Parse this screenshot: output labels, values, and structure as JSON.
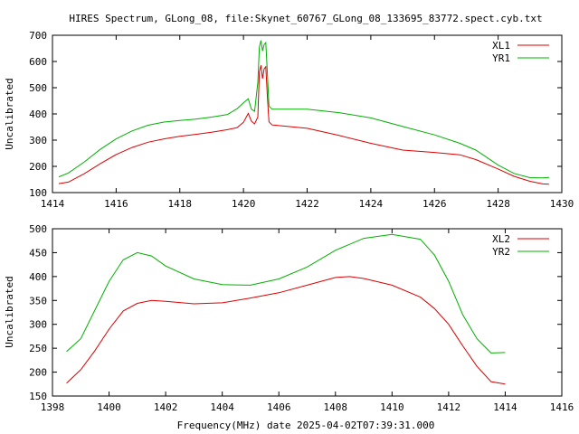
{
  "title": "HIRES Spectrum, GLong_08, file:Skynet_60767_GLong_08_133695_83772.spect.cyb.txt",
  "xlabel": "Frequency(MHz) date 2025-04-02T07:39:31.000",
  "colors": {
    "red": "#dd0000",
    "green": "#00b000",
    "axis": "#000000"
  },
  "chart_data": [
    {
      "type": "line",
      "ylabel": "Uncalibrated",
      "xlim": [
        1414,
        1430
      ],
      "ylim": [
        100,
        700
      ],
      "xticks": [
        1414,
        1416,
        1418,
        1420,
        1422,
        1424,
        1426,
        1428,
        1430
      ],
      "yticks": [
        100,
        200,
        300,
        400,
        500,
        600,
        700
      ],
      "legend_position": "top-right",
      "series": [
        {
          "name": "XL1",
          "color": "#dd0000",
          "points": [
            [
              1414.2,
              134
            ],
            [
              1414.5,
              140
            ],
            [
              1415,
              172
            ],
            [
              1415.5,
              210
            ],
            [
              1416,
              245
            ],
            [
              1416.5,
              272
            ],
            [
              1417,
              292
            ],
            [
              1417.5,
              305
            ],
            [
              1418,
              315
            ],
            [
              1418.5,
              322
            ],
            [
              1419,
              330
            ],
            [
              1419.5,
              340
            ],
            [
              1419.8,
              348
            ],
            [
              1420.0,
              368
            ],
            [
              1420.15,
              402
            ],
            [
              1420.25,
              372
            ],
            [
              1420.35,
              362
            ],
            [
              1420.45,
              388
            ],
            [
              1420.5,
              560
            ],
            [
              1420.55,
              585
            ],
            [
              1420.6,
              535
            ],
            [
              1420.65,
              572
            ],
            [
              1420.7,
              580
            ],
            [
              1420.75,
              470
            ],
            [
              1420.8,
              370
            ],
            [
              1420.9,
              358
            ],
            [
              1421,
              357
            ],
            [
              1422,
              345
            ],
            [
              1423,
              318
            ],
            [
              1424,
              288
            ],
            [
              1425,
              262
            ],
            [
              1426,
              253
            ],
            [
              1426.8,
              244
            ],
            [
              1427.3,
              226
            ],
            [
              1428,
              190
            ],
            [
              1428.5,
              162
            ],
            [
              1429,
              143
            ],
            [
              1429.4,
              133
            ],
            [
              1429.6,
              132
            ]
          ]
        },
        {
          "name": "YR1",
          "color": "#00b000",
          "points": [
            [
              1414.2,
              160
            ],
            [
              1414.5,
              175
            ],
            [
              1415,
              217
            ],
            [
              1415.5,
              265
            ],
            [
              1416,
              305
            ],
            [
              1416.5,
              335
            ],
            [
              1417,
              357
            ],
            [
              1417.5,
              369
            ],
            [
              1418,
              375
            ],
            [
              1418.5,
              380
            ],
            [
              1419,
              388
            ],
            [
              1419.5,
              398
            ],
            [
              1419.8,
              420
            ],
            [
              1420.0,
              442
            ],
            [
              1420.15,
              458
            ],
            [
              1420.25,
              418
            ],
            [
              1420.35,
              410
            ],
            [
              1420.45,
              520
            ],
            [
              1420.5,
              655
            ],
            [
              1420.55,
              680
            ],
            [
              1420.6,
              640
            ],
            [
              1420.65,
              665
            ],
            [
              1420.7,
              672
            ],
            [
              1420.75,
              560
            ],
            [
              1420.8,
              430
            ],
            [
              1420.9,
              418
            ],
            [
              1421,
              418
            ],
            [
              1422,
              418
            ],
            [
              1423,
              405
            ],
            [
              1424,
              385
            ],
            [
              1425,
              352
            ],
            [
              1426,
              320
            ],
            [
              1426.8,
              288
            ],
            [
              1427.3,
              262
            ],
            [
              1428,
              205
            ],
            [
              1428.5,
              173
            ],
            [
              1429,
              157
            ],
            [
              1429.4,
              156
            ],
            [
              1429.6,
              158
            ]
          ]
        }
      ]
    },
    {
      "type": "line",
      "ylabel": "Uncalibrated",
      "xlim": [
        1398,
        1416
      ],
      "ylim": [
        150,
        500
      ],
      "xticks": [
        1398,
        1400,
        1402,
        1404,
        1406,
        1408,
        1410,
        1412,
        1414,
        1416
      ],
      "yticks": [
        150,
        200,
        250,
        300,
        350,
        400,
        450,
        500
      ],
      "legend_position": "top-right",
      "series": [
        {
          "name": "XL2",
          "color": "#dd0000",
          "points": [
            [
              1398.5,
              177
            ],
            [
              1399,
              205
            ],
            [
              1399.5,
              245
            ],
            [
              1400,
              290
            ],
            [
              1400.5,
              328
            ],
            [
              1401,
              344
            ],
            [
              1401.5,
              350
            ],
            [
              1402,
              348
            ],
            [
              1403,
              343
            ],
            [
              1404,
              345
            ],
            [
              1405,
              355
            ],
            [
              1406,
              366
            ],
            [
              1407,
              382
            ],
            [
              1408,
              398
            ],
            [
              1408.5,
              400
            ],
            [
              1409,
              396
            ],
            [
              1410,
              382
            ],
            [
              1411,
              357
            ],
            [
              1411.5,
              333
            ],
            [
              1412,
              300
            ],
            [
              1412.5,
              255
            ],
            [
              1413,
              212
            ],
            [
              1413.5,
              180
            ],
            [
              1414,
              175
            ]
          ]
        },
        {
          "name": "YR2",
          "color": "#00b000",
          "points": [
            [
              1398.5,
              243
            ],
            [
              1399,
              270
            ],
            [
              1399.5,
              330
            ],
            [
              1400,
              390
            ],
            [
              1400.5,
              435
            ],
            [
              1401,
              450
            ],
            [
              1401.5,
              443
            ],
            [
              1402,
              422
            ],
            [
              1403,
              395
            ],
            [
              1404,
              383
            ],
            [
              1405,
              382
            ],
            [
              1406,
              395
            ],
            [
              1407,
              420
            ],
            [
              1408,
              455
            ],
            [
              1409,
              480
            ],
            [
              1410,
              488
            ],
            [
              1411,
              478
            ],
            [
              1411.5,
              445
            ],
            [
              1412,
              390
            ],
            [
              1412.5,
              320
            ],
            [
              1413,
              270
            ],
            [
              1413.5,
              240
            ],
            [
              1414,
              241
            ]
          ]
        }
      ]
    }
  ]
}
